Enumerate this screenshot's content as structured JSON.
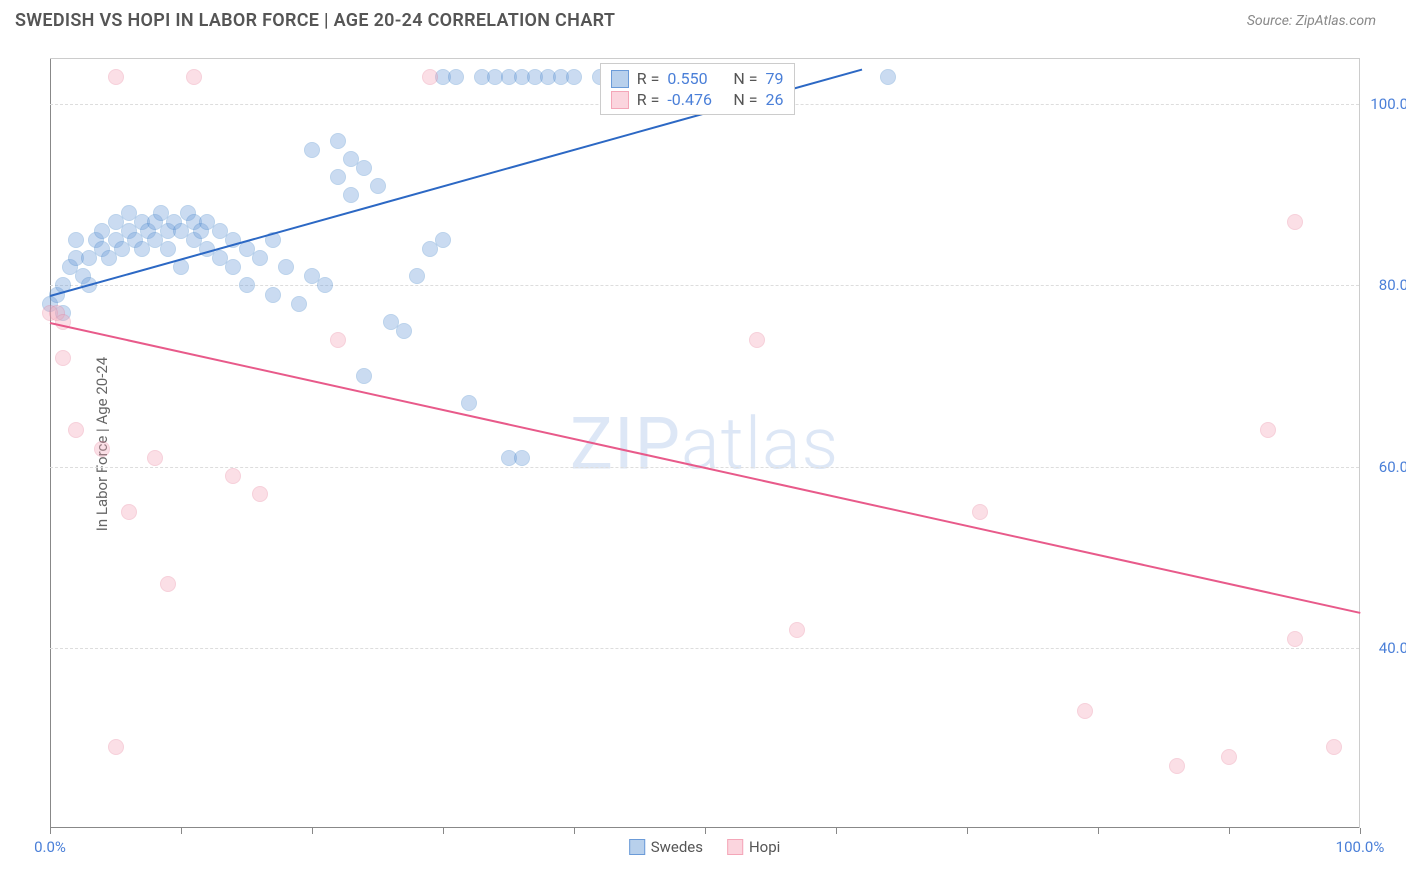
{
  "header": {
    "title": "SWEDISH VS HOPI IN LABOR FORCE | AGE 20-24 CORRELATION CHART",
    "source": "Source: ZipAtlas.com"
  },
  "y_axis": {
    "label": "In Labor Force | Age 20-24"
  },
  "watermark": "ZIPatlas",
  "chart": {
    "type": "scatter",
    "background_color": "#ffffff",
    "grid_color": "#dddddd",
    "axis_color": "#888888",
    "xlim": [
      0,
      100
    ],
    "ylim": [
      20,
      105
    ],
    "y_ticks": [
      40,
      60,
      80,
      100
    ],
    "y_tick_labels": [
      "40.0%",
      "60.0%",
      "80.0%",
      "100.0%"
    ],
    "x_ticks": [
      0,
      10,
      20,
      30,
      40,
      50,
      60,
      70,
      80,
      90,
      100
    ],
    "x_tick_labels": {
      "0": "0.0%",
      "100": "100.0%"
    },
    "marker_radius": 8,
    "marker_opacity": 0.35,
    "series": [
      {
        "name": "Swedes",
        "color": "#6b9bd8",
        "stroke": "#3d7fc8",
        "trend": {
          "x1": 0,
          "y1": 79,
          "x2": 62,
          "y2": 104,
          "color": "#2c68c4",
          "width": 2
        },
        "R": "0.550",
        "N": "79",
        "points": [
          [
            0,
            78
          ],
          [
            0.5,
            79
          ],
          [
            1,
            80
          ],
          [
            1,
            77
          ],
          [
            1.5,
            82
          ],
          [
            2,
            83
          ],
          [
            2,
            85
          ],
          [
            2.5,
            81
          ],
          [
            3,
            80
          ],
          [
            3,
            83
          ],
          [
            3.5,
            85
          ],
          [
            4,
            84
          ],
          [
            4,
            86
          ],
          [
            4.5,
            83
          ],
          [
            5,
            85
          ],
          [
            5,
            87
          ],
          [
            5.5,
            84
          ],
          [
            6,
            86
          ],
          [
            6,
            88
          ],
          [
            6.5,
            85
          ],
          [
            7,
            87
          ],
          [
            7,
            84
          ],
          [
            7.5,
            86
          ],
          [
            8,
            85
          ],
          [
            8,
            87
          ],
          [
            8.5,
            88
          ],
          [
            9,
            86
          ],
          [
            9,
            84
          ],
          [
            9.5,
            87
          ],
          [
            10,
            86
          ],
          [
            10,
            82
          ],
          [
            10.5,
            88
          ],
          [
            11,
            87
          ],
          [
            11,
            85
          ],
          [
            11.5,
            86
          ],
          [
            12,
            84
          ],
          [
            12,
            87
          ],
          [
            13,
            86
          ],
          [
            13,
            83
          ],
          [
            14,
            85
          ],
          [
            14,
            82
          ],
          [
            15,
            80
          ],
          [
            15,
            84
          ],
          [
            16,
            83
          ],
          [
            17,
            79
          ],
          [
            17,
            85
          ],
          [
            18,
            82
          ],
          [
            19,
            78
          ],
          [
            20,
            81
          ],
          [
            20,
            95
          ],
          [
            21,
            80
          ],
          [
            22,
            92
          ],
          [
            22,
            96
          ],
          [
            23,
            94
          ],
          [
            23,
            90
          ],
          [
            24,
            93
          ],
          [
            24,
            70
          ],
          [
            25,
            91
          ],
          [
            26,
            76
          ],
          [
            27,
            75
          ],
          [
            28,
            81
          ],
          [
            29,
            84
          ],
          [
            30,
            85
          ],
          [
            30,
            103
          ],
          [
            31,
            103
          ],
          [
            32,
            67
          ],
          [
            33,
            103
          ],
          [
            34,
            103
          ],
          [
            35,
            103
          ],
          [
            35,
            61
          ],
          [
            36,
            103
          ],
          [
            36,
            61
          ],
          [
            37,
            103
          ],
          [
            38,
            103
          ],
          [
            39,
            103
          ],
          [
            40,
            103
          ],
          [
            42,
            103
          ],
          [
            44,
            103
          ],
          [
            64,
            103
          ]
        ]
      },
      {
        "name": "Hopi",
        "color": "#f4a6b8",
        "stroke": "#e87a96",
        "trend": {
          "x1": 0,
          "y1": 76,
          "x2": 100,
          "y2": 44,
          "color": "#e85a8a",
          "width": 2
        },
        "R": "-0.476",
        "N": "26",
        "points": [
          [
            0,
            77
          ],
          [
            0.5,
            77
          ],
          [
            1,
            76
          ],
          [
            1,
            72
          ],
          [
            2,
            64
          ],
          [
            4,
            62
          ],
          [
            5,
            103
          ],
          [
            5,
            29
          ],
          [
            6,
            55
          ],
          [
            8,
            61
          ],
          [
            9,
            47
          ],
          [
            11,
            103
          ],
          [
            14,
            59
          ],
          [
            16,
            57
          ],
          [
            22,
            74
          ],
          [
            29,
            103
          ],
          [
            54,
            74
          ],
          [
            57,
            42
          ],
          [
            71,
            55
          ],
          [
            79,
            33
          ],
          [
            86,
            27
          ],
          [
            90,
            28
          ],
          [
            93,
            64
          ],
          [
            95,
            41
          ],
          [
            95,
            87
          ],
          [
            98,
            29
          ]
        ]
      }
    ]
  },
  "legend": {
    "rows": [
      {
        "swatch_fill": "#b8d0ec",
        "swatch_border": "#6b9bd8",
        "r_label": "R =",
        "r_val": "0.550",
        "n_label": "N =",
        "n_val": "79"
      },
      {
        "swatch_fill": "#fbd5de",
        "swatch_border": "#f4a6b8",
        "r_label": "R =",
        "r_val": "-0.476",
        "n_label": "N =",
        "n_val": "26"
      }
    ]
  },
  "bottom_legend": [
    {
      "swatch_fill": "#b8d0ec",
      "swatch_border": "#6b9bd8",
      "label": "Swedes"
    },
    {
      "swatch_fill": "#fbd5de",
      "swatch_border": "#f4a6b8",
      "label": "Hopi"
    }
  ]
}
